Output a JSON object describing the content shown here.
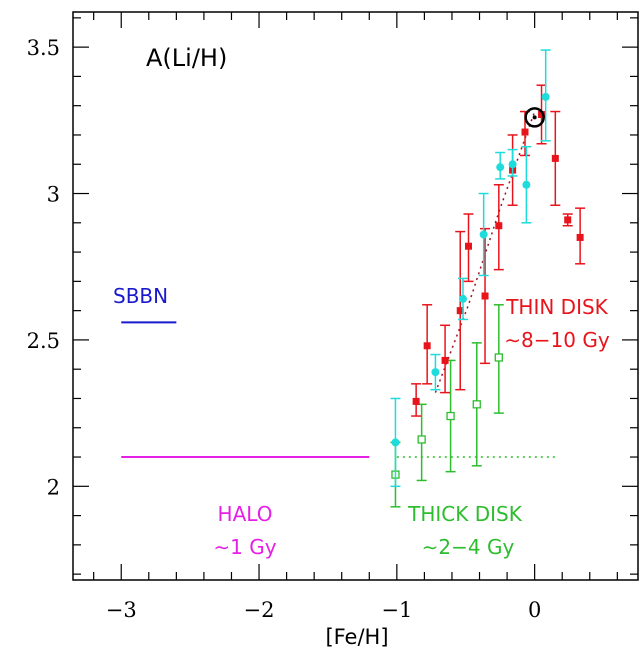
{
  "chart_data": {
    "type": "scatter",
    "title": "A(Li/H)",
    "xlabel": "[Fe/H]",
    "ylabel": "",
    "xlim": [
      -3.35,
      0.75
    ],
    "ylim": [
      1.68,
      3.62
    ],
    "x_ticks": [
      {
        "value": -3,
        "label": "−3"
      },
      {
        "value": -2,
        "label": "−2"
      },
      {
        "value": -1,
        "label": "−1"
      },
      {
        "value": 0,
        "label": "0"
      }
    ],
    "y_ticks": [
      {
        "value": 2,
        "label": "2"
      },
      {
        "value": 2.5,
        "label": "2.5"
      },
      {
        "value": 3,
        "label": "3"
      },
      {
        "value": 3.5,
        "label": "3.5"
      }
    ],
    "grid": false,
    "colors": {
      "thin": "#e8141b",
      "cyan": "#1fdcdc",
      "thick": "#2ebd2e",
      "halo": "#e61fe6",
      "sbbn": "#1a1acc"
    },
    "thin_disk": [
      {
        "x": -0.86,
        "y": 2.29,
        "lo": 2.24,
        "hi": 2.35
      },
      {
        "x": -0.78,
        "y": 2.48,
        "lo": 2.35,
        "hi": 2.62
      },
      {
        "x": -0.65,
        "y": 2.43,
        "lo": 2.32,
        "hi": 2.55
      },
      {
        "x": -0.54,
        "y": 2.6,
        "lo": 2.33,
        "hi": 2.87
      },
      {
        "x": -0.48,
        "y": 2.82,
        "lo": 2.7,
        "hi": 2.93
      },
      {
        "x": -0.36,
        "y": 2.65,
        "lo": 2.42,
        "hi": 2.88
      },
      {
        "x": -0.26,
        "y": 2.89,
        "lo": 2.74,
        "hi": 3.03
      },
      {
        "x": -0.16,
        "y": 3.08,
        "lo": 2.96,
        "hi": 3.2
      },
      {
        "x": -0.07,
        "y": 3.21,
        "lo": 3.13,
        "hi": 3.28
      },
      {
        "x": 0.05,
        "y": 3.27,
        "lo": 3.17,
        "hi": 3.37
      },
      {
        "x": 0.15,
        "y": 3.12,
        "lo": 2.96,
        "hi": 3.28
      },
      {
        "x": 0.24,
        "y": 2.91,
        "lo": 2.89,
        "hi": 2.93
      },
      {
        "x": 0.33,
        "y": 2.85,
        "lo": 2.76,
        "hi": 2.95
      }
    ],
    "cyan_points": [
      {
        "x": -1.01,
        "y": 2.15,
        "lo": 2.0,
        "hi": 2.3
      },
      {
        "x": -0.72,
        "y": 2.39,
        "lo": 2.33,
        "hi": 2.45
      },
      {
        "x": -0.52,
        "y": 2.64,
        "lo": 2.57,
        "hi": 2.71
      },
      {
        "x": -0.37,
        "y": 2.86,
        "lo": 2.72,
        "hi": 3.0
      },
      {
        "x": -0.25,
        "y": 3.09,
        "lo": 3.05,
        "hi": 3.14
      },
      {
        "x": -0.16,
        "y": 3.1,
        "lo": 3.06,
        "hi": 3.15
      },
      {
        "x": -0.06,
        "y": 3.03,
        "lo": 2.9,
        "hi": 3.16
      },
      {
        "x": 0.08,
        "y": 3.33,
        "lo": 3.18,
        "hi": 3.49
      }
    ],
    "thick_disk": [
      {
        "x": -1.01,
        "y": 2.04,
        "lo": 1.93,
        "hi": 2.15
      },
      {
        "x": -0.82,
        "y": 2.16,
        "lo": 2.02,
        "hi": 2.28
      },
      {
        "x": -0.61,
        "y": 2.24,
        "lo": 2.05,
        "hi": 2.43
      },
      {
        "x": -0.42,
        "y": 2.28,
        "lo": 2.07,
        "hi": 2.49
      },
      {
        "x": -0.26,
        "y": 2.44,
        "lo": 2.25,
        "hi": 2.62
      }
    ],
    "sun": {
      "x": 0.0,
      "y": 3.26
    },
    "halo_line": {
      "x1": -3.0,
      "x2": -1.2,
      "y": 2.1
    },
    "thick_dotted_line": {
      "x1": -1.0,
      "x2": 0.15,
      "y": 2.1
    },
    "sbbn_line": {
      "x1": -3.0,
      "x2": -2.6,
      "y": 2.56
    },
    "trend_line": {
      "x": [
        -0.72,
        -0.48,
        -0.25,
        0.0
      ],
      "y": [
        2.32,
        2.62,
        2.95,
        3.28
      ]
    },
    "annotations": {
      "sbbn": "SBBN",
      "halo_1": "HALO",
      "halo_2": "∼1 Gy",
      "thick_1": "THICK DISK",
      "thick_2": "∼2−4 Gy",
      "thin_1": "THIN DISK",
      "thin_2": "∼8−10 Gy"
    }
  }
}
